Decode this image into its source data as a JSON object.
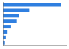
{
  "chart_data": {
    "type": "bar",
    "orientation": "horizontal",
    "categories": [
      null,
      null,
      null,
      null,
      null,
      null,
      null,
      null
    ],
    "values": [
      290,
      130,
      80,
      65,
      38,
      18,
      10,
      6
    ],
    "color": "#2f7fe0",
    "xlim": [
      0,
      320
    ],
    "tick_labels": false
  }
}
